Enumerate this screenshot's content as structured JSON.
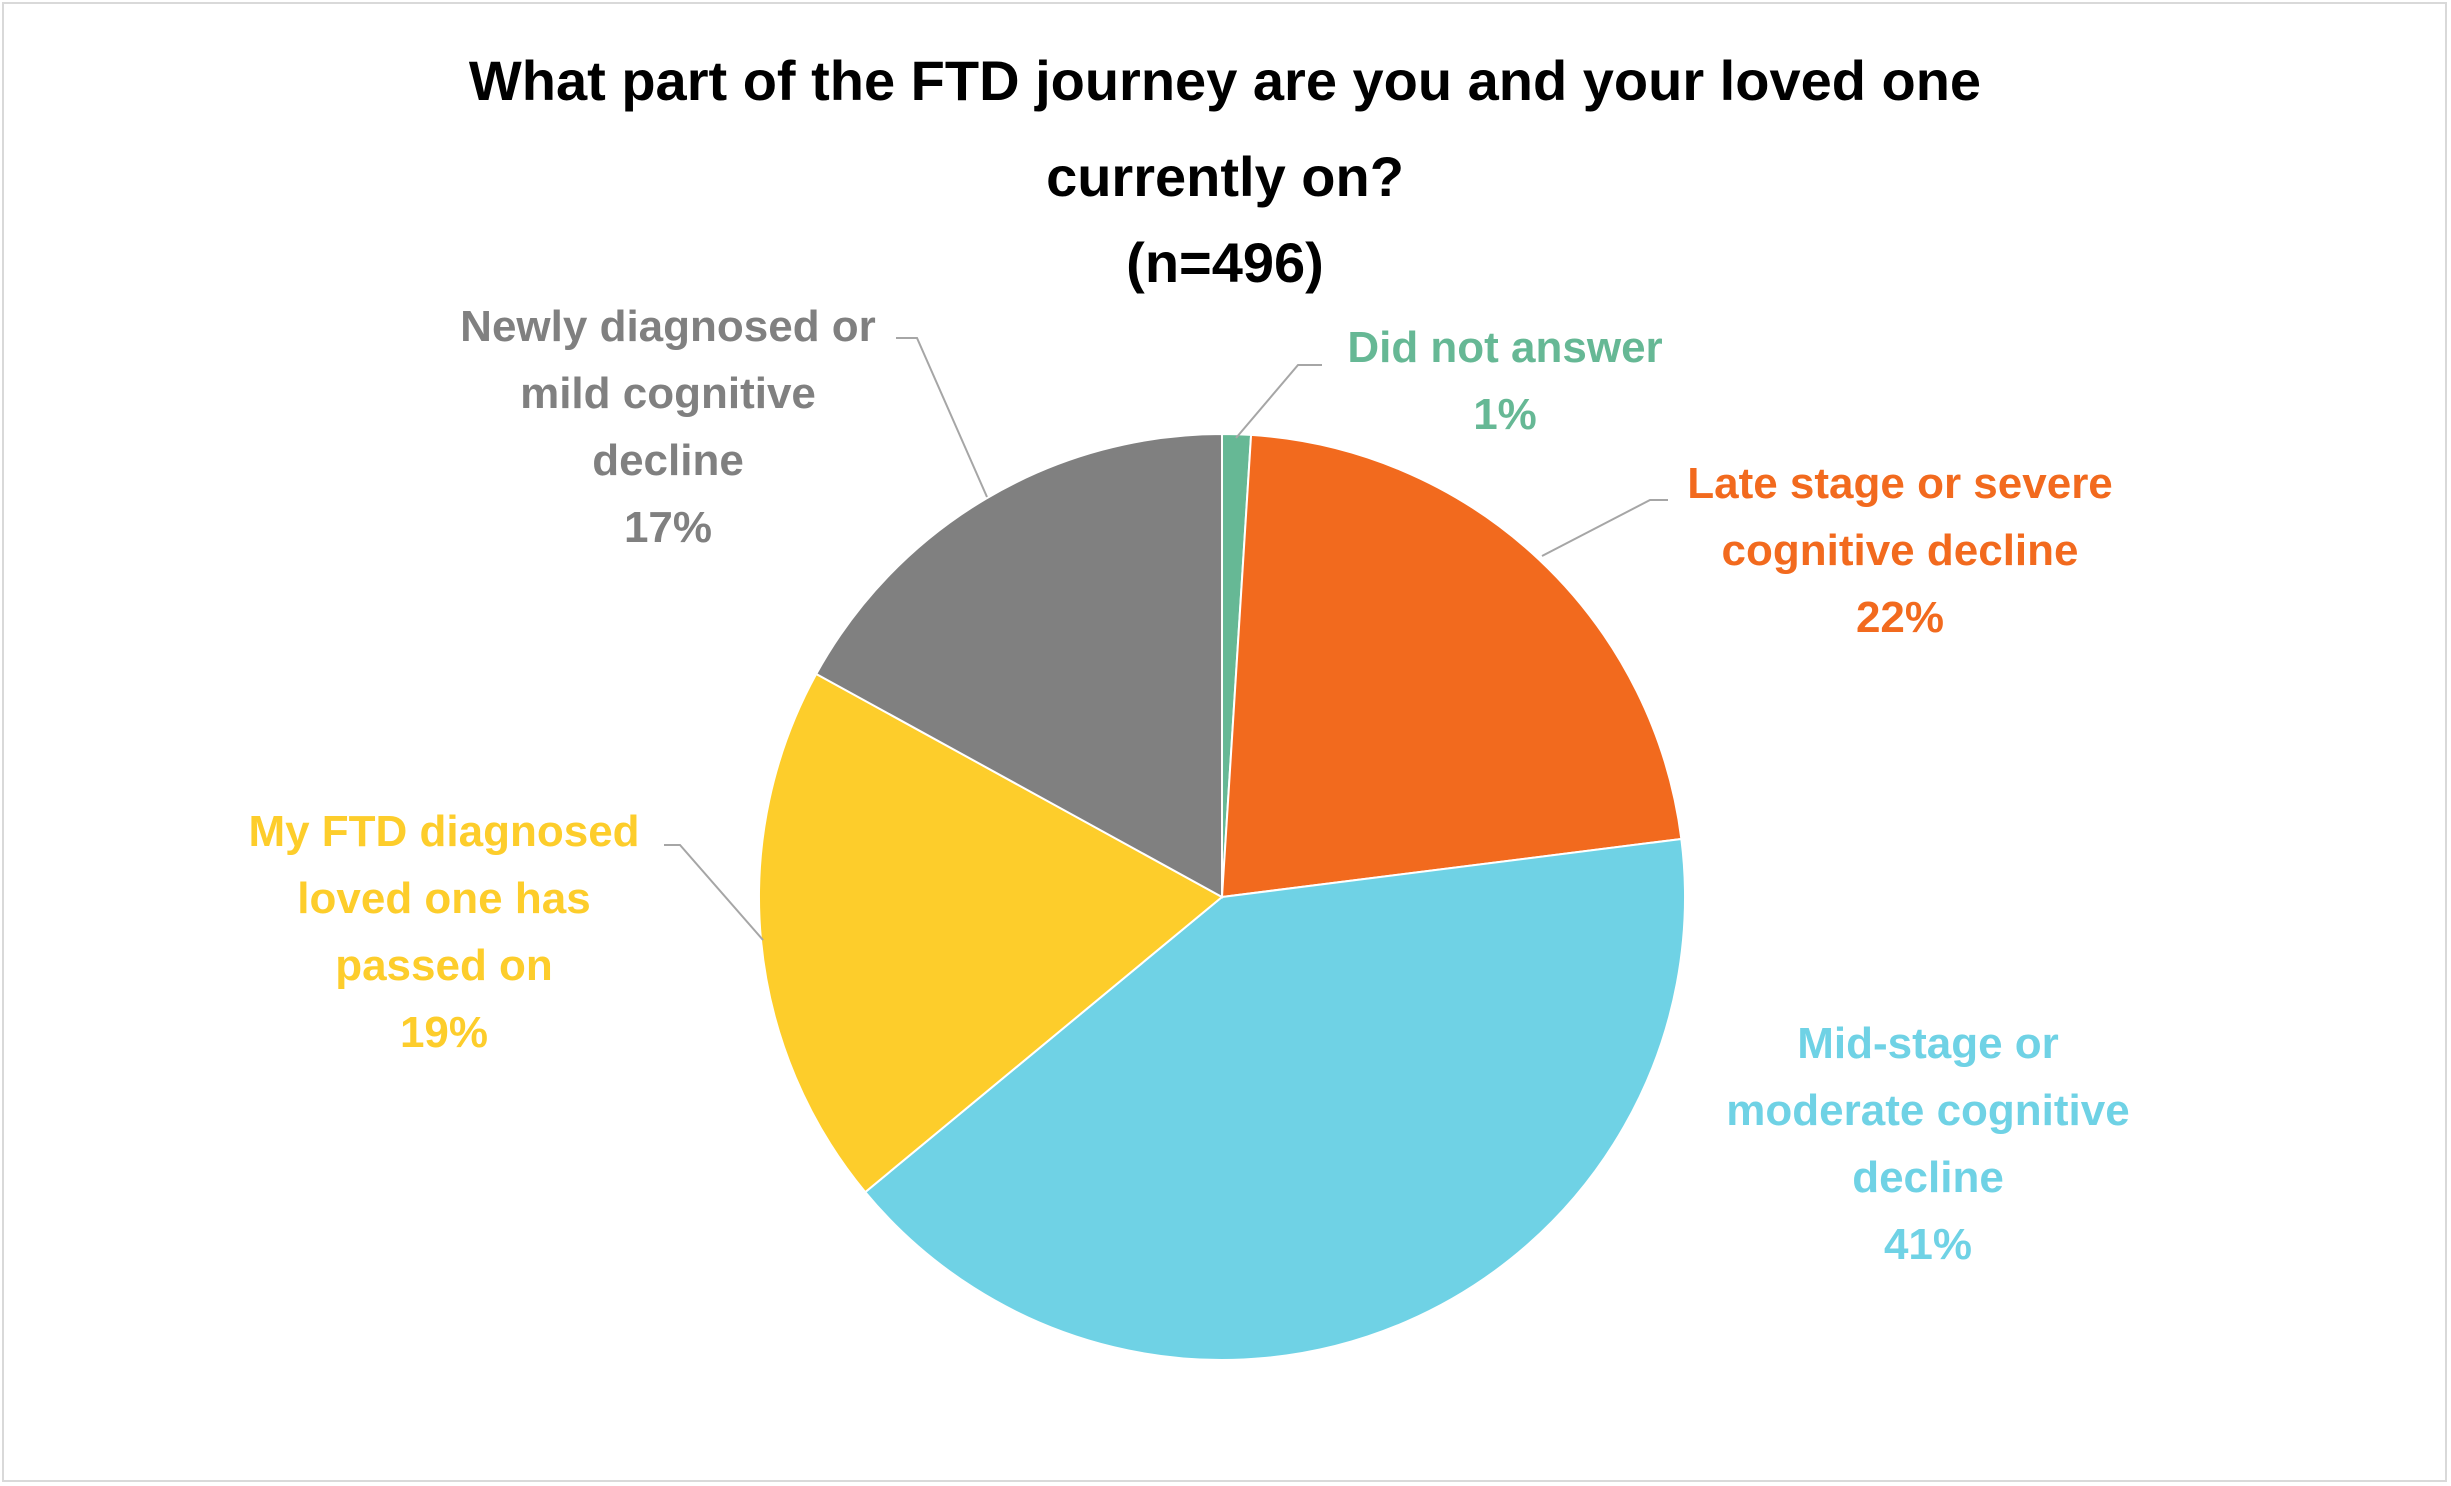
{
  "chart_data": {
    "type": "pie",
    "title_lines": [
      "What part of the FTD journey are you and your loved one",
      "currently on?",
      "(n=496)"
    ],
    "slices": [
      {
        "category": "Did not answer",
        "label_lines": [
          "Did not answer"
        ],
        "value": 1,
        "value_label": "1%",
        "color": "#66b895"
      },
      {
        "category": "Late stage or severe cognitive decline",
        "label_lines": [
          "Late stage or severe",
          "cognitive decline"
        ],
        "value": 22,
        "value_label": "22%",
        "color": "#f26a1e"
      },
      {
        "category": "Mid-stage or moderate cognitive decline",
        "label_lines": [
          "Mid-stage or",
          "moderate cognitive",
          "decline"
        ],
        "value": 41,
        "value_label": "41%",
        "color": "#6fd2e5"
      },
      {
        "category": "My FTD diagnosed loved one has passed on",
        "label_lines": [
          "My FTD diagnosed",
          "loved one has",
          "passed on"
        ],
        "value": 19,
        "value_label": "19%",
        "color": "#fdcd2b"
      },
      {
        "category": "Newly diagnosed or mild cognitive decline",
        "label_lines": [
          "Newly diagnosed or",
          "mild cognitive",
          "decline"
        ],
        "value": 17,
        "value_label": "17%",
        "color": "#808080"
      }
    ],
    "start_angle_deg": 0,
    "direction": "clockwise",
    "legend": "none",
    "data_labels": "outside with leader lines"
  }
}
